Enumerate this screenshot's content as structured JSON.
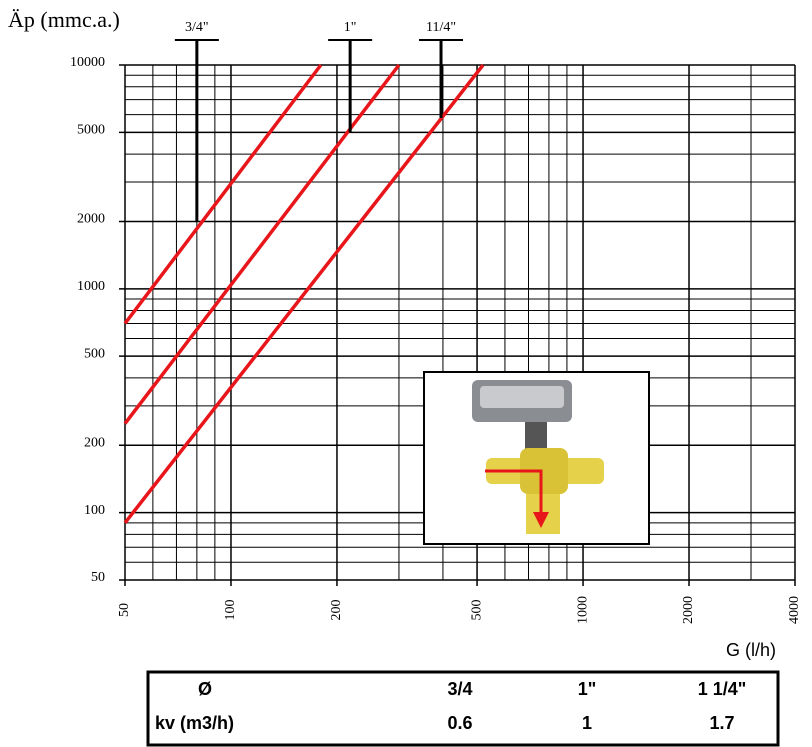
{
  "chart_data": {
    "type": "line",
    "title": "Äp (mmc.a.)",
    "x_label": "G (l/h)",
    "log_x": true,
    "log_y": true,
    "grid": true,
    "xlim": [
      50,
      4000
    ],
    "xticks": [
      50,
      100,
      200,
      500,
      1000,
      2000,
      4000
    ],
    "ylim": [
      50,
      10000
    ],
    "yticks": [
      50,
      100,
      200,
      500,
      1000,
      2000,
      5000,
      10000
    ],
    "xgrid": [
      60,
      70,
      80,
      90,
      300,
      400,
      600,
      700,
      800,
      900,
      3000
    ],
    "ygrid": [
      60,
      70,
      80,
      90,
      300,
      400,
      600,
      700,
      800,
      900,
      3000,
      4000,
      6000,
      7000,
      8000,
      9000
    ],
    "series": [
      {
        "color": "#e8161b",
        "x": [
          50,
          180
        ],
        "values": [
          700,
          10000
        ]
      },
      {
        "color": "#e8161b",
        "x": [
          50,
          300
        ],
        "values": [
          250,
          10000
        ]
      },
      {
        "color": "#e8161b",
        "x": [
          50,
          520
        ],
        "values": [
          90,
          10000
        ]
      }
    ],
    "markers": [
      {
        "label": "3/4\"",
        "x": 80,
        "y": 2000
      },
      {
        "label": "1\"",
        "x": 218,
        "y": 5000
      },
      {
        "label": "11/4\"",
        "x": 395,
        "y": 5800
      }
    ]
  },
  "table": {
    "rows": [
      [
        "Ø",
        "3/4",
        "1\"",
        "1 1/4\""
      ],
      [
        "kv (m3/h)",
        "0.6",
        "1",
        "1.7"
      ]
    ]
  }
}
